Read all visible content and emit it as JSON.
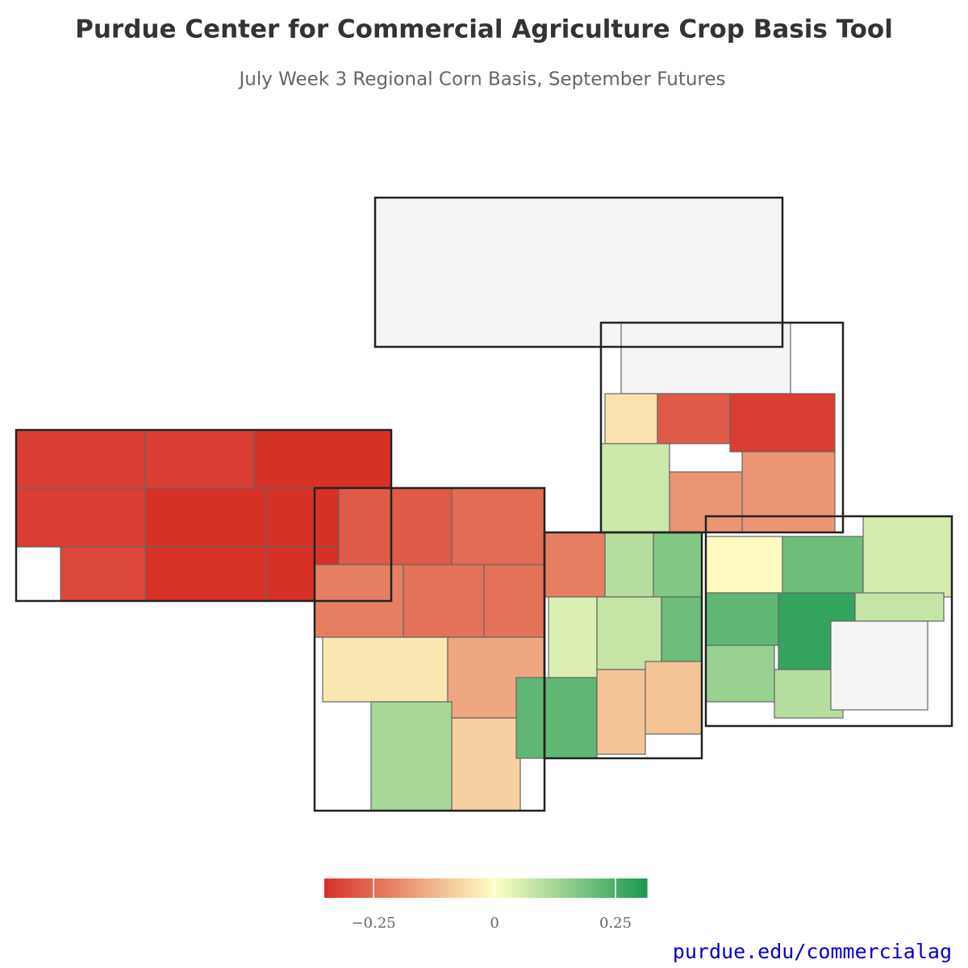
{
  "title": "Purdue Center for Commercial Agriculture Crop Basis Tool",
  "subtitle": "July Week 3 Regional Corn Basis, September Futures",
  "map": {
    "values": [
      -0.33,
      -0.33,
      -0.36,
      -0.33,
      -0.37,
      -0.36,
      -0.31,
      -0.35,
      -0.36,
      -0.28,
      -0.25,
      -0.22,
      -0.24,
      -0.24,
      -0.04,
      -0.15,
      0.12,
      -0.08,
      -0.22,
      0.1,
      0.17,
      0.05,
      0.08,
      0.2,
      0.22,
      -0.1,
      -0.1,
      -0.01,
      0.2,
      0.06,
      0.22,
      0.28,
      0.08,
      0.14,
      0.1,
      null,
      null,
      null,
      -0.05,
      -0.28,
      -0.33,
      0.07,
      -0.18,
      -0.18
    ],
    "no_data_color": "#f5f5f5"
  },
  "colorbar": {
    "range": [
      -0.352,
      0.315
    ],
    "midpoint": 0,
    "colors": [
      "#d73027",
      "#ffffc4",
      "#1a9850"
    ],
    "ticks": [
      {
        "value": -0.25,
        "label": "−0.25"
      },
      0,
      0.25
    ]
  },
  "footer": "purdue.edu/commercialag"
}
